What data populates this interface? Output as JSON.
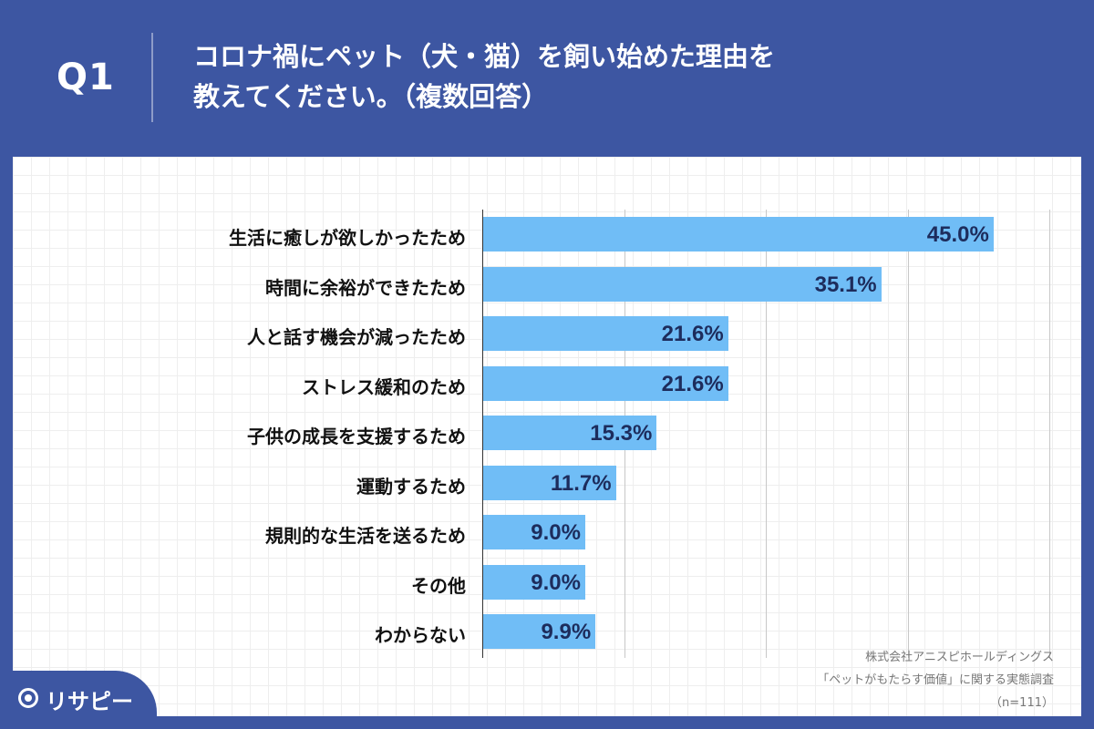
{
  "header": {
    "q_number": "Q1",
    "question_line1": "コロナ禍にペット（犬・猫）を飼い始めた理由を",
    "question_line2": "教えてください。（複数回答）"
  },
  "chart_data": {
    "type": "bar",
    "orientation": "horizontal",
    "categories": [
      "生活に癒しが欲しかったため",
      "時間に余裕ができたため",
      "人と話す機会が減ったため",
      "ストレス緩和のため",
      "子供の成長を支援するため",
      "運動するため",
      "規則的な生活を送るため",
      "その他",
      "わからない"
    ],
    "values": [
      45.0,
      35.1,
      21.6,
      21.6,
      15.3,
      11.7,
      9.0,
      9.0,
      9.9
    ],
    "value_labels": [
      "45.0%",
      "35.1%",
      "21.6%",
      "21.6%",
      "15.3%",
      "11.7%",
      "9.0%",
      "9.0%",
      "9.9%"
    ],
    "xlim": [
      0,
      50
    ],
    "grid": true,
    "bar_color": "#70bdf6",
    "label_color": "#1d2c5c"
  },
  "source": {
    "line1": "株式会社アニスピホールディングス",
    "line2": "「ペットがもたらす価値」に関する実態調査",
    "line3": "（n=111）"
  },
  "brand": {
    "logo_text": "リサピー",
    "logo_icon": "pin-icon"
  },
  "colors": {
    "background": "#3d56a2",
    "card": "#ffffff"
  }
}
